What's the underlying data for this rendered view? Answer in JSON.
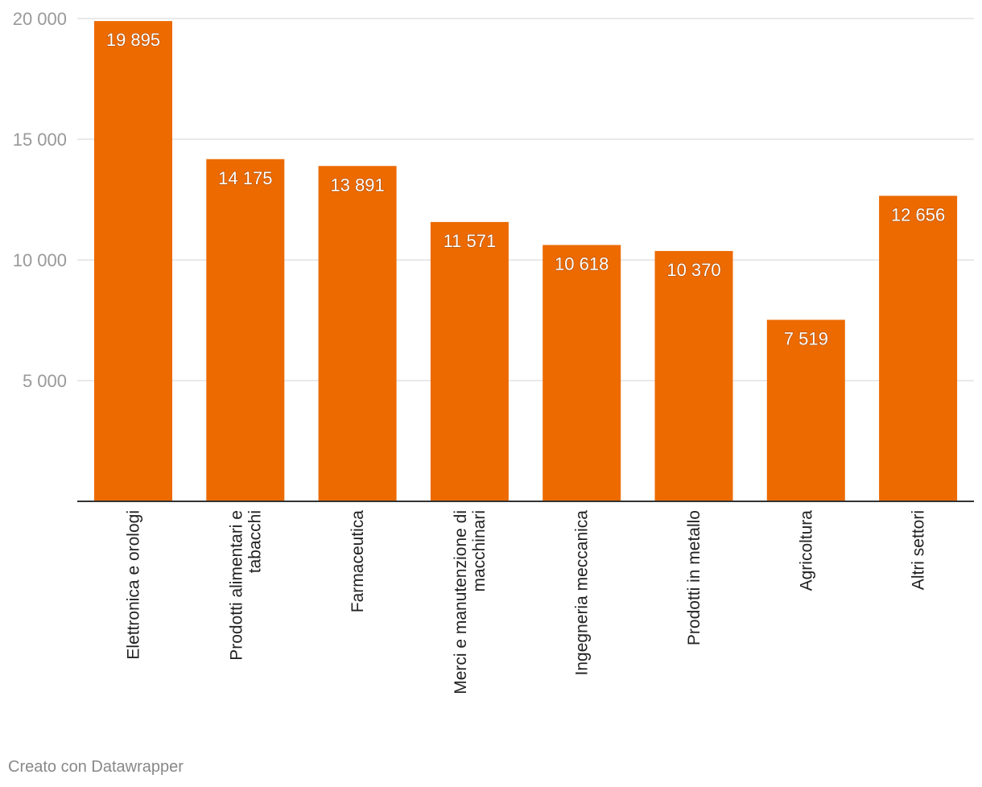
{
  "chart_data": {
    "type": "bar",
    "categories": [
      "Elettronica e orologi",
      "Prodotti alimentari e tabacchi",
      "Farmaceutica",
      "Merci e manutenzione di macchinari",
      "Ingegneria meccanica",
      "Prodotti in metallo",
      "Agricoltura",
      "Altri settori"
    ],
    "category_lines": [
      [
        "Elettronica e orologi"
      ],
      [
        "Prodotti alimentari e",
        "tabacchi"
      ],
      [
        "Farmaceutica"
      ],
      [
        "Merci e manutenzione di",
        "macchinari"
      ],
      [
        "Ingegneria meccanica"
      ],
      [
        "Prodotti in metallo"
      ],
      [
        "Agricoltura"
      ],
      [
        "Altri settori"
      ]
    ],
    "values": [
      19895,
      14175,
      13891,
      11571,
      10618,
      10370,
      7519,
      12656
    ],
    "value_labels": [
      "19 895",
      "14 175",
      "13 891",
      "11 571",
      "10 618",
      "10 370",
      "7 519",
      "12 656"
    ],
    "yticks": [
      5000,
      10000,
      15000,
      20000
    ],
    "ytick_labels": [
      "5 000",
      "10 000",
      "15 000",
      "20 000"
    ],
    "ylim": [
      0,
      20000
    ],
    "grid": true,
    "bar_color": "#ec6a00",
    "title": "",
    "xlabel": "",
    "ylabel": ""
  },
  "footer": {
    "credit": "Creato con Datawrapper"
  }
}
